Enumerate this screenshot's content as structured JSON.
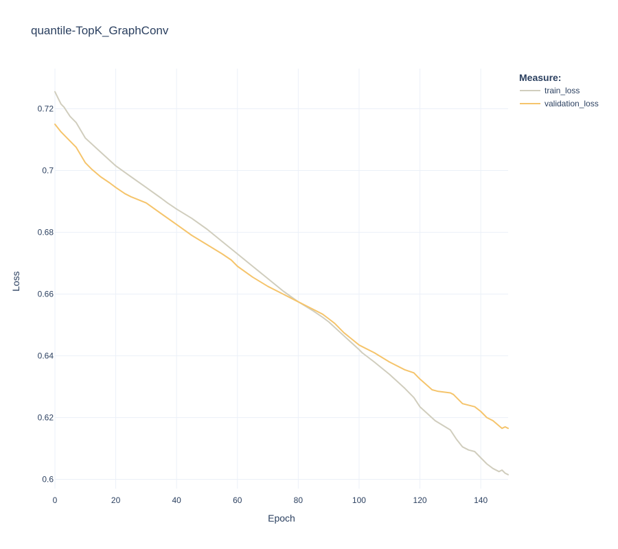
{
  "chart_data": {
    "type": "line",
    "title": "quantile-TopK_GraphConv",
    "xlabel": "Epoch",
    "ylabel": "Loss",
    "xlim": [
      0,
      149
    ],
    "ylim": [
      0.597,
      0.733
    ],
    "x_ticks": [
      0,
      20,
      40,
      60,
      80,
      100,
      120,
      140
    ],
    "y_ticks": [
      0.6,
      0.62,
      0.64,
      0.66,
      0.68,
      0.7,
      0.72
    ],
    "y_tick_labels": [
      "0.6",
      "0.62",
      "0.64",
      "0.66",
      "0.68",
      "0.7",
      "0.72"
    ],
    "grid": true,
    "legend": {
      "title": "Measure:",
      "position": "top-right"
    },
    "series": [
      {
        "name": "train_loss",
        "color": "#d0cdbd",
        "points": [
          [
            0,
            0.7255
          ],
          [
            1,
            0.7235
          ],
          [
            2,
            0.7215
          ],
          [
            3,
            0.7205
          ],
          [
            4,
            0.719
          ],
          [
            5,
            0.7175
          ],
          [
            7,
            0.7155
          ],
          [
            10,
            0.7105
          ],
          [
            15,
            0.706
          ],
          [
            20,
            0.7015
          ],
          [
            25,
            0.698
          ],
          [
            30,
            0.6945
          ],
          [
            35,
            0.691
          ],
          [
            37,
            0.6895
          ],
          [
            40,
            0.6875
          ],
          [
            45,
            0.6845
          ],
          [
            50,
            0.681
          ],
          [
            55,
            0.677
          ],
          [
            60,
            0.673
          ],
          [
            65,
            0.669
          ],
          [
            70,
            0.665
          ],
          [
            75,
            0.661
          ],
          [
            80,
            0.6575
          ],
          [
            85,
            0.6545
          ],
          [
            88,
            0.6525
          ],
          [
            90,
            0.651
          ],
          [
            95,
            0.6465
          ],
          [
            100,
            0.642
          ],
          [
            101,
            0.641
          ],
          [
            105,
            0.638
          ],
          [
            110,
            0.634
          ],
          [
            115,
            0.6295
          ],
          [
            118,
            0.6265
          ],
          [
            120,
            0.6235
          ],
          [
            125,
            0.619
          ],
          [
            130,
            0.616
          ],
          [
            132,
            0.613
          ],
          [
            134,
            0.6105
          ],
          [
            136,
            0.6095
          ],
          [
            138,
            0.609
          ],
          [
            140,
            0.607
          ],
          [
            142,
            0.605
          ],
          [
            144,
            0.6035
          ],
          [
            146,
            0.6025
          ],
          [
            147,
            0.603
          ],
          [
            148,
            0.602
          ],
          [
            149,
            0.6015
          ]
        ]
      },
      {
        "name": "validation_loss",
        "color": "#f5c46b",
        "points": [
          [
            0,
            0.715
          ],
          [
            2,
            0.7125
          ],
          [
            4,
            0.7105
          ],
          [
            7,
            0.7075
          ],
          [
            10,
            0.7025
          ],
          [
            12,
            0.7005
          ],
          [
            15,
            0.698
          ],
          [
            18,
            0.696
          ],
          [
            20,
            0.6945
          ],
          [
            23,
            0.6925
          ],
          [
            25,
            0.6915
          ],
          [
            30,
            0.6895
          ],
          [
            35,
            0.686
          ],
          [
            40,
            0.6825
          ],
          [
            45,
            0.679
          ],
          [
            50,
            0.676
          ],
          [
            55,
            0.673
          ],
          [
            58,
            0.671
          ],
          [
            60,
            0.669
          ],
          [
            65,
            0.6655
          ],
          [
            70,
            0.6625
          ],
          [
            75,
            0.66
          ],
          [
            78,
            0.6585
          ],
          [
            80,
            0.6575
          ],
          [
            85,
            0.655
          ],
          [
            88,
            0.6535
          ],
          [
            90,
            0.652
          ],
          [
            92,
            0.6505
          ],
          [
            95,
            0.6475
          ],
          [
            100,
            0.6435
          ],
          [
            102,
            0.6425
          ],
          [
            105,
            0.641
          ],
          [
            110,
            0.638
          ],
          [
            115,
            0.6355
          ],
          [
            118,
            0.6345
          ],
          [
            120,
            0.6325
          ],
          [
            124,
            0.629
          ],
          [
            126,
            0.6285
          ],
          [
            130,
            0.628
          ],
          [
            131,
            0.6275
          ],
          [
            134,
            0.6245
          ],
          [
            138,
            0.6235
          ],
          [
            140,
            0.622
          ],
          [
            142,
            0.62
          ],
          [
            144,
            0.619
          ],
          [
            147,
            0.6165
          ],
          [
            148,
            0.617
          ],
          [
            149,
            0.6165
          ]
        ]
      }
    ]
  }
}
